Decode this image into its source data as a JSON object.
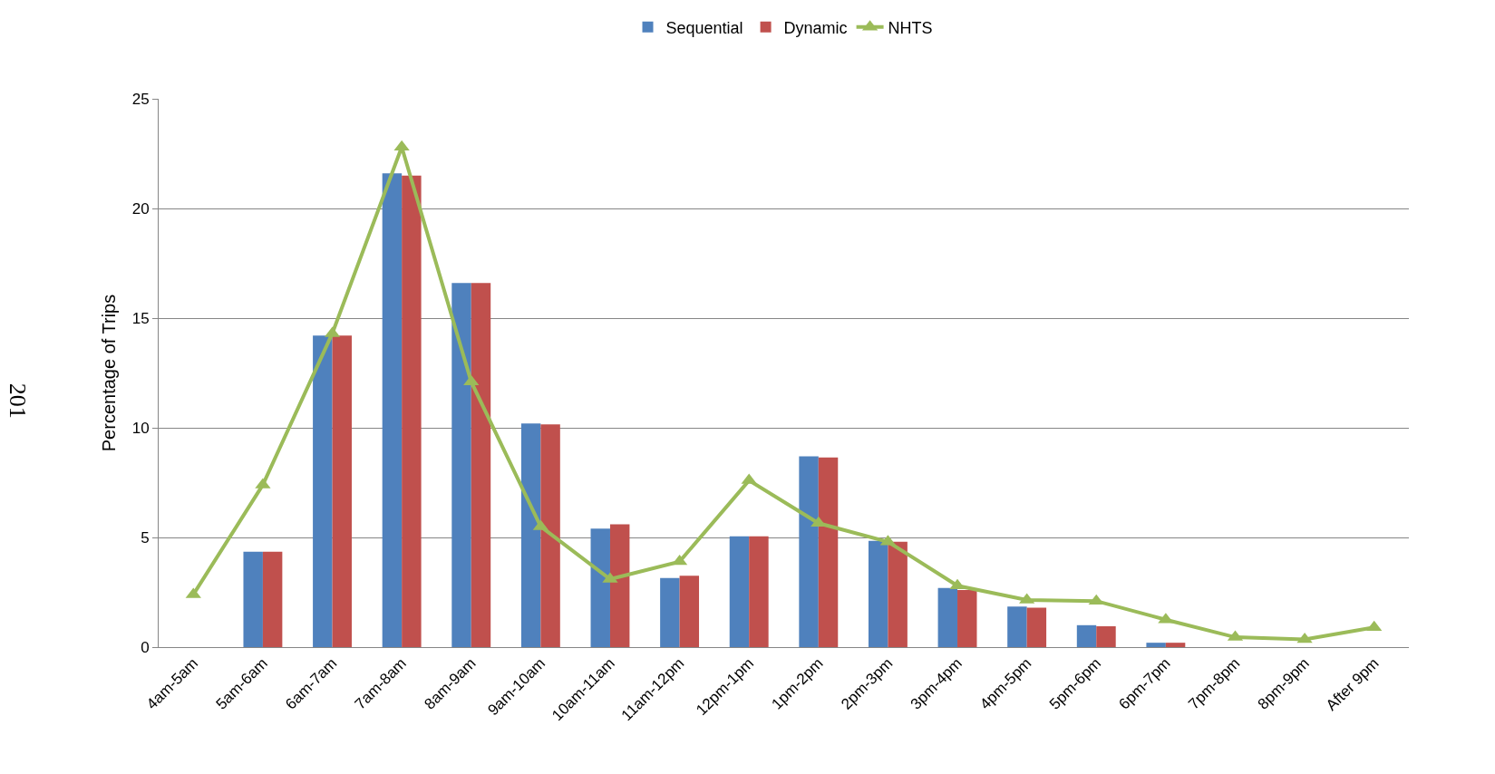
{
  "chart_data": {
    "type": "bar",
    "ylabel": "Percentage of Trips",
    "categories": [
      "4am-5am",
      "5am-6am",
      "6am-7am",
      "7am-8am",
      "8am-9am",
      "9am-10am",
      "10am-11am",
      "11am-12pm",
      "12pm-1pm",
      "1pm-2pm",
      "2pm-3pm",
      "3pm-4pm",
      "4pm-5pm",
      "5pm-6pm",
      "6pm-7pm",
      "7pm-8pm",
      "8pm-9pm",
      "After 9pm"
    ],
    "series": [
      {
        "name": "Sequential",
        "color": "#4f81bd",
        "values": [
          null,
          4.35,
          14.2,
          21.6,
          16.6,
          10.2,
          5.4,
          3.15,
          5.05,
          8.7,
          4.85,
          2.7,
          1.85,
          1.0,
          0.2,
          null,
          null,
          null
        ]
      },
      {
        "name": "Dynamic",
        "color": "#c0504d",
        "values": [
          null,
          4.35,
          14.2,
          21.5,
          16.6,
          10.15,
          5.6,
          3.25,
          5.05,
          8.65,
          4.8,
          2.6,
          1.8,
          0.95,
          0.2,
          null,
          null,
          null
        ]
      },
      {
        "name": "NHTS",
        "type": "line",
        "color": "#9bbb59",
        "marker": "triangle",
        "line_style": "solid",
        "values": [
          2.4,
          7.4,
          14.3,
          22.8,
          12.1,
          5.5,
          3.1,
          3.9,
          7.6,
          5.65,
          4.8,
          2.8,
          2.15,
          2.1,
          1.25,
          0.45,
          0.35,
          0.9
        ]
      }
    ],
    "ylim": [
      0,
      25
    ],
    "yticks": [
      0,
      5,
      10,
      15,
      20,
      25
    ],
    "grid": "y",
    "legend": "top",
    "annotations": [
      "201"
    ]
  }
}
